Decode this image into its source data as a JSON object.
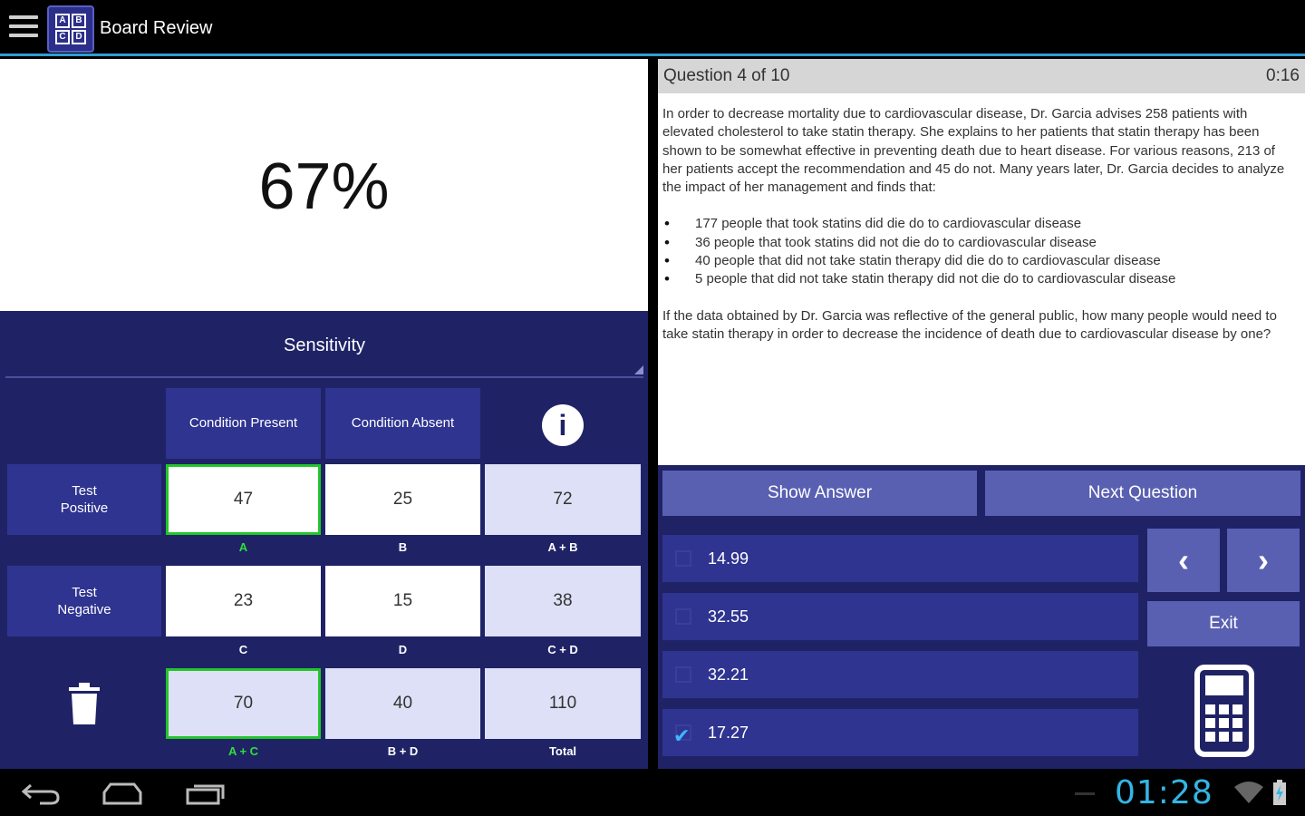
{
  "app": {
    "title": "Board Review"
  },
  "result": {
    "percent": "67%"
  },
  "calculator": {
    "type_label": "Sensitivity",
    "headers": {
      "condition_present": "Condition Present",
      "condition_absent": "Condition Absent"
    },
    "rows": [
      {
        "label_line1": "Test",
        "label_line2": "Positive",
        "cells": [
          "47",
          "25",
          "72"
        ],
        "subs": [
          "A",
          "B",
          "A + B"
        ]
      },
      {
        "label_line1": "Test",
        "label_line2": "Negative",
        "cells": [
          "23",
          "15",
          "38"
        ],
        "subs": [
          "C",
          "D",
          "C + D"
        ]
      },
      {
        "cells": [
          "70",
          "40",
          "110"
        ],
        "subs": [
          "A + C",
          "B + D",
          "Total"
        ]
      }
    ]
  },
  "question": {
    "header": "Question 4 of 10",
    "timer": "0:16",
    "intro": "In order to decrease mortality due to cardiovascular disease, Dr. Garcia advises 258 patients with elevated cholesterol to take statin therapy. She explains to her patients that statin therapy has been shown to be somewhat effective in preventing death due to heart disease. For various reasons, 213 of her patients accept the recommendation and 45 do not. Many years later, Dr. Garcia decides to analyze the impact of her management and finds that:",
    "bullets": [
      "177 people that took statins did die do to cardiovascular disease",
      "36 people that took statins did not die do to cardiovascular disease",
      "40 people that did not take statin therapy did die do to cardiovascular disease",
      "5 people that did not take statin therapy did not die do to cardiovascular disease"
    ],
    "prompt": "If the data obtained by Dr. Garcia was reflective of the general public, how many people would need to take statin therapy in order to decrease the incidence of death due to cardiovascular disease by one?"
  },
  "actions": {
    "show_answer": "Show Answer",
    "next_question": "Next Question",
    "prev_glyph": "‹",
    "next_glyph": "›",
    "exit": "Exit"
  },
  "choices": [
    {
      "label": "14.99",
      "checked": false
    },
    {
      "label": "32.55",
      "checked": false
    },
    {
      "label": "32.21",
      "checked": false
    },
    {
      "label": "17.27",
      "checked": true
    }
  ],
  "status": {
    "clock": "01:28"
  },
  "colors": {
    "panel": "#1f2366",
    "button": "#5960b2",
    "accent": "#33b5e5",
    "selected": "#22c62a"
  }
}
